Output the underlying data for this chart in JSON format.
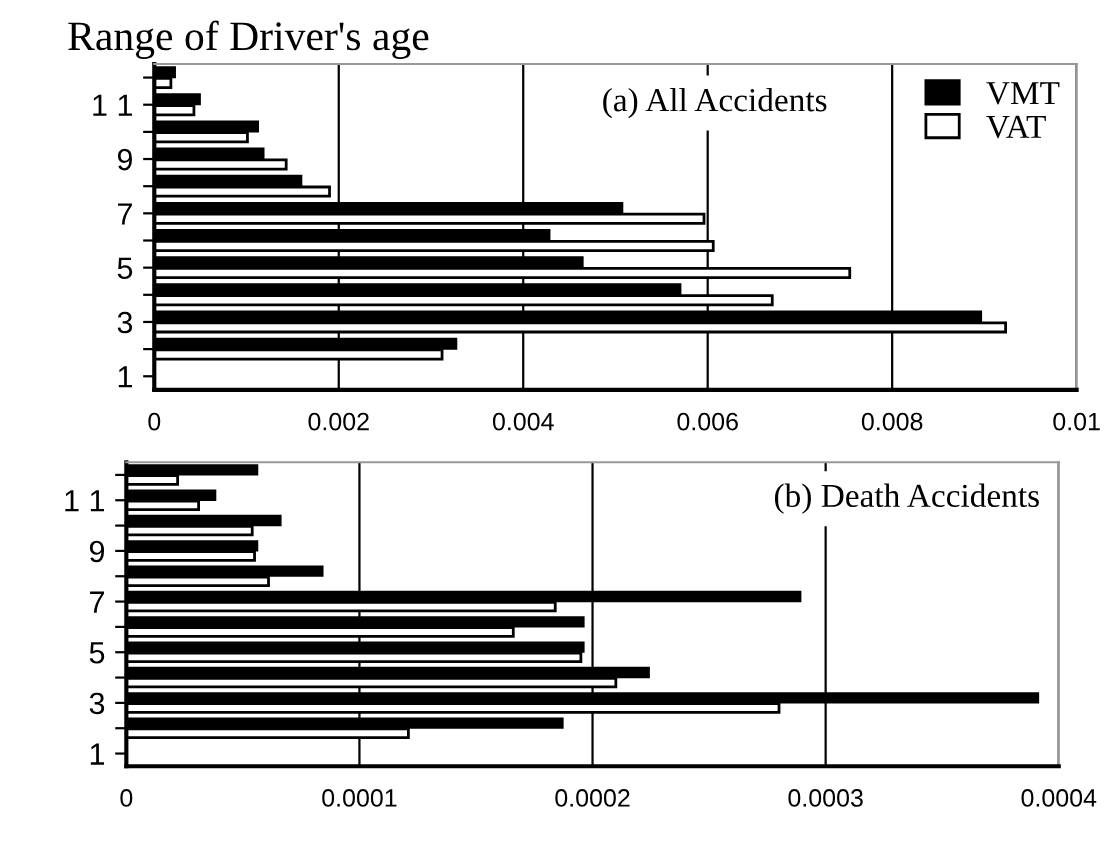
{
  "chart_data": [
    {
      "type": "bar",
      "orientation": "horizontal",
      "ylabel": "Range of Driver's age",
      "title": "(a) All Accidents",
      "categories": [
        null,
        "1 1",
        null,
        "9",
        null,
        "7",
        null,
        "5",
        null,
        "3",
        null,
        "1"
      ],
      "series": [
        {
          "name": "VMT",
          "color": "#000000",
          "values": [
            0.00022,
            0.00049,
            0.00112,
            0.00118,
            0.00159,
            0.00507,
            0.00428,
            0.00464,
            0.0057,
            0.00896,
            0.00327,
            null
          ]
        },
        {
          "name": "VAT",
          "color": "#ffffff",
          "values": [
            0.00018,
            0.00043,
            0.00101,
            0.00143,
            0.0019,
            0.00596,
            0.00606,
            0.00754,
            0.0067,
            0.00923,
            0.00312,
            null
          ]
        }
      ],
      "xlim": [
        0,
        0.01
      ],
      "xticks": [
        0,
        0.002,
        0.004,
        0.006,
        0.008,
        0.01
      ],
      "grid": "x",
      "legend": "top right"
    },
    {
      "type": "bar",
      "orientation": "horizontal",
      "title": "(b) Death Accidents",
      "categories": [
        null,
        "1 1",
        null,
        "9",
        null,
        "7",
        null,
        "5",
        null,
        "3",
        null,
        "1"
      ],
      "series": [
        {
          "color": "#000000",
          "values": [
            5.6e-05,
            3.8e-05,
            6.6e-05,
            5.6e-05,
            8.4e-05,
            0.000289,
            0.000196,
            0.000196,
            0.000224,
            0.000391,
            0.000187,
            null
          ]
        },
        {
          "color": "#ffffff",
          "values": [
            2.2e-05,
            3.1e-05,
            5.4e-05,
            5.5e-05,
            6.1e-05,
            0.000184,
            0.000166,
            0.000195,
            0.00021,
            0.00028,
            0.000121,
            null
          ]
        }
      ],
      "xlim": [
        0,
        0.0004
      ],
      "xticks": [
        0,
        0.0001,
        0.0002,
        0.0003,
        0.0004
      ],
      "grid": "x"
    }
  ]
}
